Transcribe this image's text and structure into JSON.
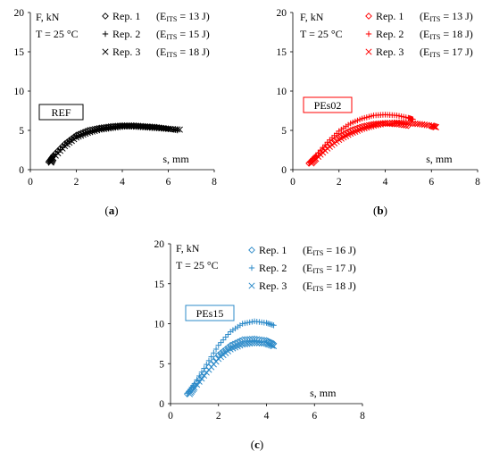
{
  "chart_data": [
    {
      "type": "scatter",
      "panel": "a",
      "caption_letter": "a",
      "label_box": "REF",
      "annotations": {
        "y_unit": "F, kN",
        "temperature": "T = 25 °C",
        "x_unit": "s, mm"
      },
      "xlim": [
        0,
        8
      ],
      "ylim": [
        0,
        20
      ],
      "xticks": [
        0,
        2,
        4,
        6,
        8
      ],
      "yticks": [
        0,
        5,
        10,
        15,
        20
      ],
      "color": "#000000",
      "legend_position": "top-right",
      "series": [
        {
          "name": "Rep. 1",
          "energy": "(E_ITS = 13 J)",
          "energy_value": "13 J",
          "marker": "diamond",
          "x": [
            0.8,
            1.0,
            1.5,
            2.0,
            2.5,
            3.0,
            3.5,
            4.0,
            4.5,
            5.0,
            5.5,
            6.0
          ],
          "y": [
            1.0,
            1.8,
            3.3,
            4.4,
            5.0,
            5.3,
            5.5,
            5.6,
            5.6,
            5.5,
            5.4,
            5.2
          ]
        },
        {
          "name": "Rep. 2",
          "energy": "(E_ITS = 15 J)",
          "energy_value": "15 J",
          "marker": "plus",
          "x": [
            0.8,
            1.0,
            1.5,
            2.0,
            2.5,
            3.0,
            3.5,
            4.0,
            4.5,
            5.0,
            5.5,
            6.0,
            6.4
          ],
          "y": [
            0.9,
            1.7,
            3.1,
            4.2,
            4.8,
            5.2,
            5.4,
            5.5,
            5.5,
            5.4,
            5.3,
            5.2,
            5.0
          ]
        },
        {
          "name": "Rep. 3",
          "energy": "(E_ITS = 18 J)",
          "energy_value": "18 J",
          "marker": "cross",
          "x": [
            0.9,
            1.0,
            1.5,
            2.0,
            2.5,
            3.0,
            3.5,
            4.0,
            4.5,
            5.0,
            5.5,
            6.0,
            6.5
          ],
          "y": [
            0.9,
            1.5,
            3.0,
            4.1,
            4.7,
            5.1,
            5.3,
            5.5,
            5.5,
            5.4,
            5.3,
            5.2,
            5.1
          ]
        }
      ]
    },
    {
      "type": "scatter",
      "panel": "b",
      "caption_letter": "b",
      "label_box": "PEs02",
      "annotations": {
        "y_unit": "F, kN",
        "temperature": "T = 25 °C",
        "x_unit": "s, mm"
      },
      "xlim": [
        0,
        8
      ],
      "ylim": [
        0,
        20
      ],
      "xticks": [
        0,
        2,
        4,
        6,
        8
      ],
      "yticks": [
        0,
        5,
        10,
        15,
        20
      ],
      "color": "#ff0000",
      "legend_position": "top-right",
      "series": [
        {
          "name": "Rep. 1",
          "energy": "(E_ITS = 13 J)",
          "energy_value": "13 J",
          "marker": "diamond",
          "x": [
            0.7,
            1.0,
            1.5,
            2.0,
            2.5,
            3.0,
            3.5,
            4.0,
            4.5,
            5.0
          ],
          "y": [
            0.8,
            1.6,
            3.0,
            4.2,
            5.0,
            5.5,
            5.8,
            5.9,
            5.8,
            5.6
          ]
        },
        {
          "name": "Rep. 2",
          "energy": "(E_ITS = 18 J)",
          "energy_value": "18 J",
          "marker": "plus",
          "x": [
            0.7,
            1.0,
            1.5,
            2.0,
            2.5,
            3.0,
            3.5,
            4.0,
            4.5,
            5.0,
            5.2
          ],
          "y": [
            0.9,
            1.8,
            3.5,
            4.9,
            5.9,
            6.5,
            6.9,
            7.0,
            6.9,
            6.6,
            6.4
          ]
        },
        {
          "name": "Rep. 3",
          "energy": "(E_ITS = 17 J)",
          "energy_value": "17 J",
          "marker": "cross",
          "x": [
            0.8,
            1.0,
            1.5,
            2.0,
            2.5,
            3.0,
            3.5,
            4.0,
            4.5,
            5.0,
            5.5,
            6.0,
            6.2
          ],
          "y": [
            0.8,
            1.4,
            2.7,
            3.8,
            4.6,
            5.2,
            5.6,
            5.9,
            6.0,
            5.9,
            5.8,
            5.6,
            5.4
          ]
        }
      ]
    },
    {
      "type": "scatter",
      "panel": "c",
      "caption_letter": "c",
      "label_box": "PEs15",
      "annotations": {
        "y_unit": "F, kN",
        "temperature": "T = 25 °C",
        "x_unit": "s, mm"
      },
      "xlim": [
        0,
        8
      ],
      "ylim": [
        0,
        20
      ],
      "xticks": [
        0,
        2,
        4,
        6,
        8
      ],
      "yticks": [
        0,
        5,
        10,
        15,
        20
      ],
      "color": "#2e8bc9",
      "legend_position": "top-right",
      "series": [
        {
          "name": "Rep. 1",
          "energy": "(E_ITS = 16 J)",
          "energy_value": "16 J",
          "marker": "diamond",
          "x": [
            0.7,
            1.0,
            1.5,
            2.0,
            2.5,
            3.0,
            3.5,
            4.0,
            4.3
          ],
          "y": [
            1.2,
            2.2,
            4.2,
            6.1,
            7.3,
            8.0,
            8.1,
            7.9,
            7.5
          ]
        },
        {
          "name": "Rep. 2",
          "energy": "(E_ITS = 17 J)",
          "energy_value": "17 J",
          "marker": "plus",
          "x": [
            0.7,
            1.0,
            1.5,
            2.0,
            2.5,
            3.0,
            3.5,
            4.0,
            4.3
          ],
          "y": [
            1.3,
            2.5,
            4.9,
            7.3,
            9.0,
            10.0,
            10.3,
            10.1,
            9.8
          ]
        },
        {
          "name": "Rep. 3",
          "energy": "(E_ITS = 18 J)",
          "energy_value": "18 J",
          "marker": "cross",
          "x": [
            0.8,
            1.0,
            1.5,
            2.0,
            2.5,
            3.0,
            3.5,
            4.0,
            4.3
          ],
          "y": [
            1.2,
            2.0,
            3.9,
            5.6,
            6.8,
            7.4,
            7.6,
            7.5,
            7.2
          ]
        }
      ]
    }
  ]
}
